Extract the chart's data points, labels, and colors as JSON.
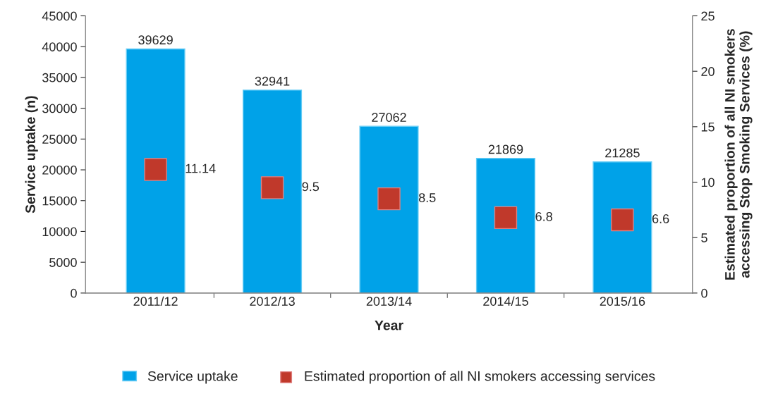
{
  "chart_data": {
    "type": "bar",
    "xlabel": "Year",
    "ylabel": "Service uptake (n)",
    "y2label": "Estimated proportion of all NI smokers\naccessing Stop Smoking Services (%)",
    "categories": [
      "2011/12",
      "2012/13",
      "2013/14",
      "2014/15",
      "2015/16"
    ],
    "series": [
      {
        "name": "Service uptake",
        "color": "#00a2e8",
        "values": [
          39629,
          32941,
          27062,
          21869,
          21285
        ]
      },
      {
        "name": "Estimated proportion of all NI smokers accessing services",
        "type": "scatter",
        "axis": "y2",
        "color": "#c0392b",
        "values": [
          11.14,
          9.5,
          8.5,
          6.8,
          6.6
        ]
      }
    ],
    "ylim": [
      0,
      45000
    ],
    "yticks": [
      0,
      5000,
      10000,
      15000,
      20000,
      25000,
      30000,
      35000,
      40000,
      45000
    ],
    "y2lim": [
      0,
      25
    ],
    "y2ticks": [
      0,
      5,
      10,
      15,
      20,
      25
    ],
    "data_labels": true,
    "legend": "bottom",
    "marker": "square",
    "grid": false
  }
}
